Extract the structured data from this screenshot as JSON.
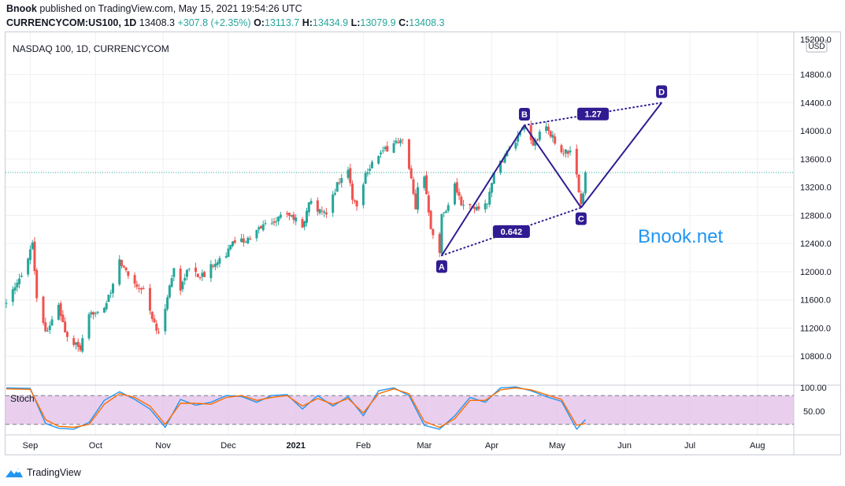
{
  "header": {
    "author": "Bnook",
    "published_text": "published on TradingView.com, May 15, 2021 19:54:26 UTC",
    "symbol": "CURRENCYCOM:US100, 1D",
    "last": "13408.3",
    "change": "+307.8 (+2.35%)",
    "o_label": "O:",
    "o_value": "13113.7",
    "h_label": "H:",
    "h_value": "13434.9",
    "l_label": "L:",
    "l_value": "13079.9",
    "c_label": "C:",
    "c_value": "13408.3"
  },
  "chart_data": [
    {
      "type": "candlestick",
      "title": "NASDAQ 100, 1D, CURRENCYCOM",
      "currency_label": "USD",
      "watermark": "Bnook.net",
      "ylim": [
        10400,
        15400
      ],
      "y_ticks": [
        10800,
        11200,
        11600,
        12000,
        12400,
        12800,
        13200,
        13600,
        14000,
        14400,
        14800
      ],
      "y_tick_labels": [
        "10800.0",
        "11200.0",
        "11600.0",
        "12000.0",
        "12400.0",
        "12800.0",
        "13200.0",
        "13600.0",
        "14000.0",
        "14400.0",
        "14800.0"
      ],
      "top_partial_label": "15200.0",
      "last_price_line": 13408.3,
      "x_range": [
        "2020-08-21",
        "2021-08-17"
      ],
      "x_ticks": [
        {
          "label": "Sep",
          "date": "2020-09-01",
          "bold": false
        },
        {
          "label": "Oct",
          "date": "2020-10-01",
          "bold": false
        },
        {
          "label": "Nov",
          "date": "2020-11-01",
          "bold": false
        },
        {
          "label": "Dec",
          "date": "2020-12-01",
          "bold": false
        },
        {
          "label": "2021",
          "date": "2021-01-01",
          "bold": true
        },
        {
          "label": "Feb",
          "date": "2021-02-01",
          "bold": false
        },
        {
          "label": "Mar",
          "date": "2021-03-01",
          "bold": false
        },
        {
          "label": "Apr",
          "date": "2021-04-01",
          "bold": false
        },
        {
          "label": "May",
          "date": "2021-05-01",
          "bold": false
        },
        {
          "label": "Jun",
          "date": "2021-06-01",
          "bold": false
        },
        {
          "label": "Jul",
          "date": "2021-07-01",
          "bold": false
        },
        {
          "label": "Aug",
          "date": "2021-08-01",
          "bold": false
        }
      ],
      "close_path": [
        [
          "2020-08-21",
          11600
        ],
        [
          "2020-08-25",
          11750
        ],
        [
          "2020-08-28",
          11950
        ],
        [
          "2020-09-02",
          12420
        ],
        [
          "2020-09-04",
          11650
        ],
        [
          "2020-09-08",
          11150
        ],
        [
          "2020-09-11",
          11300
        ],
        [
          "2020-09-14",
          11500
        ],
        [
          "2020-09-18",
          11050
        ],
        [
          "2020-09-21",
          10980
        ],
        [
          "2020-09-24",
          10900
        ],
        [
          "2020-09-28",
          11350
        ],
        [
          "2020-10-01",
          11450
        ],
        [
          "2020-10-05",
          11500
        ],
        [
          "2020-10-08",
          11700
        ],
        [
          "2020-10-12",
          12150
        ],
        [
          "2020-10-14",
          12050
        ],
        [
          "2020-10-20",
          11800
        ],
        [
          "2020-10-23",
          11750
        ],
        [
          "2020-10-28",
          11250
        ],
        [
          "2020-10-30",
          11100
        ],
        [
          "2020-11-03",
          11650
        ],
        [
          "2020-11-06",
          12050
        ],
        [
          "2020-11-09",
          11750
        ],
        [
          "2020-11-11",
          11950
        ],
        [
          "2020-11-13",
          12050
        ],
        [
          "2020-11-17",
          11950
        ],
        [
          "2020-11-20",
          11950
        ],
        [
          "2020-11-25",
          12150
        ],
        [
          "2020-11-30",
          12250
        ],
        [
          "2020-12-04",
          12450
        ],
        [
          "2020-12-09",
          12450
        ],
        [
          "2020-12-11",
          12450
        ],
        [
          "2020-12-16",
          12650
        ],
        [
          "2020-12-21",
          12700
        ],
        [
          "2020-12-28",
          12850
        ],
        [
          "2021-01-04",
          12650
        ],
        [
          "2021-01-08",
          13050
        ],
        [
          "2021-01-12",
          12850
        ],
        [
          "2021-01-15",
          12800
        ],
        [
          "2021-01-20",
          13250
        ],
        [
          "2021-01-25",
          13450
        ],
        [
          "2021-01-27",
          13050
        ],
        [
          "2021-01-29",
          12920
        ],
        [
          "2021-02-02",
          13400
        ],
        [
          "2021-02-05",
          13550
        ],
        [
          "2021-02-08",
          13650
        ],
        [
          "2021-02-12",
          13750
        ],
        [
          "2021-02-16",
          13850
        ],
        [
          "2021-02-19",
          13850
        ],
        [
          "2021-02-23",
          13300
        ],
        [
          "2021-02-25",
          12850
        ],
        [
          "2021-02-26",
          13180
        ],
        [
          "2021-03-01",
          13350
        ],
        [
          "2021-03-04",
          12650
        ],
        [
          "2021-03-08",
          12280
        ],
        [
          "2021-03-09",
          12800
        ],
        [
          "2021-03-12",
          12950
        ],
        [
          "2021-03-15",
          13250
        ],
        [
          "2021-03-18",
          12950
        ],
        [
          "2021-03-24",
          12900
        ],
        [
          "2021-03-30",
          12950
        ],
        [
          "2021-04-01",
          13300
        ],
        [
          "2021-04-07",
          13650
        ],
        [
          "2021-04-12",
          13850
        ],
        [
          "2021-04-16",
          14050
        ],
        [
          "2021-04-20",
          13800
        ],
        [
          "2021-04-23",
          13950
        ],
        [
          "2021-04-26",
          14050
        ],
        [
          "2021-04-29",
          13900
        ],
        [
          "2021-05-03",
          13700
        ],
        [
          "2021-05-06",
          13700
        ],
        [
          "2021-05-07",
          13750
        ],
        [
          "2021-05-10",
          13350
        ],
        [
          "2021-05-12",
          12950
        ],
        [
          "2021-05-13",
          13100
        ],
        [
          "2021-05-14",
          13408.3
        ]
      ],
      "harmonic_pattern": {
        "color": "#311b92",
        "points": [
          {
            "label": "A",
            "date": "2021-03-09",
            "value": 12230
          },
          {
            "label": "B",
            "date": "2021-04-16",
            "value": 14080
          },
          {
            "label": "C",
            "date": "2021-05-12",
            "value": 12910
          },
          {
            "label": "D",
            "date": "2021-06-18",
            "value": 14400
          }
        ],
        "ratios": [
          {
            "label": "0.642",
            "from": "A",
            "to": "C"
          },
          {
            "label": "1.27",
            "from": "B",
            "to": "D"
          }
        ]
      }
    },
    {
      "type": "line",
      "indicator": "Stoch",
      "label": "Stoch",
      "ylim": [
        0,
        100
      ],
      "y_tick_labels": [
        "100.00",
        "50.00"
      ],
      "band": {
        "upper": 80,
        "lower": 20,
        "fill": "#e1bee7"
      },
      "series": [
        {
          "color": "#2196f3",
          "values": [
            [
              "2020-08-21",
              96
            ],
            [
              "2020-09-01",
              95
            ],
            [
              "2020-09-08",
              22
            ],
            [
              "2020-09-14",
              12
            ],
            [
              "2020-09-21",
              10
            ],
            [
              "2020-09-28",
              24
            ],
            [
              "2020-10-05",
              70
            ],
            [
              "2020-10-12",
              88
            ],
            [
              "2020-10-19",
              72
            ],
            [
              "2020-10-26",
              52
            ],
            [
              "2020-11-02",
              14
            ],
            [
              "2020-11-09",
              72
            ],
            [
              "2020-11-16",
              60
            ],
            [
              "2020-11-23",
              66
            ],
            [
              "2020-11-30",
              80
            ],
            [
              "2020-12-07",
              78
            ],
            [
              "2020-12-14",
              66
            ],
            [
              "2020-12-21",
              80
            ],
            [
              "2020-12-28",
              82
            ],
            [
              "2021-01-04",
              52
            ],
            [
              "2021-01-11",
              80
            ],
            [
              "2021-01-18",
              58
            ],
            [
              "2021-01-25",
              78
            ],
            [
              "2021-02-01",
              38
            ],
            [
              "2021-02-08",
              90
            ],
            [
              "2021-02-15",
              96
            ],
            [
              "2021-02-22",
              80
            ],
            [
              "2021-03-01",
              18
            ],
            [
              "2021-03-08",
              10
            ],
            [
              "2021-03-15",
              38
            ],
            [
              "2021-03-22",
              76
            ],
            [
              "2021-03-29",
              66
            ],
            [
              "2021-04-05",
              96
            ],
            [
              "2021-04-12",
              98
            ],
            [
              "2021-04-19",
              90
            ],
            [
              "2021-04-26",
              78
            ],
            [
              "2021-05-03",
              68
            ],
            [
              "2021-05-10",
              10
            ],
            [
              "2021-05-14",
              30
            ]
          ]
        },
        {
          "color": "#ff6d00",
          "values": [
            [
              "2020-08-21",
              94
            ],
            [
              "2020-09-01",
              93
            ],
            [
              "2020-09-08",
              30
            ],
            [
              "2020-09-14",
              16
            ],
            [
              "2020-09-21",
              14
            ],
            [
              "2020-09-28",
              20
            ],
            [
              "2020-10-05",
              62
            ],
            [
              "2020-10-12",
              84
            ],
            [
              "2020-10-19",
              76
            ],
            [
              "2020-10-26",
              58
            ],
            [
              "2020-11-02",
              20
            ],
            [
              "2020-11-09",
              64
            ],
            [
              "2020-11-16",
              64
            ],
            [
              "2020-11-23",
              62
            ],
            [
              "2020-11-30",
              76
            ],
            [
              "2020-12-07",
              80
            ],
            [
              "2020-12-14",
              70
            ],
            [
              "2020-12-21",
              76
            ],
            [
              "2020-12-28",
              80
            ],
            [
              "2021-01-04",
              58
            ],
            [
              "2021-01-11",
              74
            ],
            [
              "2021-01-18",
              62
            ],
            [
              "2021-01-25",
              74
            ],
            [
              "2021-02-01",
              44
            ],
            [
              "2021-02-08",
              84
            ],
            [
              "2021-02-15",
              94
            ],
            [
              "2021-02-22",
              84
            ],
            [
              "2021-03-01",
              26
            ],
            [
              "2021-03-08",
              14
            ],
            [
              "2021-03-15",
              32
            ],
            [
              "2021-03-22",
              70
            ],
            [
              "2021-03-29",
              70
            ],
            [
              "2021-04-05",
              92
            ],
            [
              "2021-04-12",
              96
            ],
            [
              "2021-04-19",
              92
            ],
            [
              "2021-04-26",
              82
            ],
            [
              "2021-05-03",
              72
            ],
            [
              "2021-05-10",
              18
            ],
            [
              "2021-05-14",
              22
            ]
          ]
        }
      ]
    }
  ],
  "colors": {
    "up": "#26a69a",
    "down": "#ef5350",
    "grid": "#eef0f3",
    "axis_text": "#131722"
  },
  "footer": {
    "brand": "TradingView",
    "logo_icon": "tradingview-logo-icon"
  }
}
